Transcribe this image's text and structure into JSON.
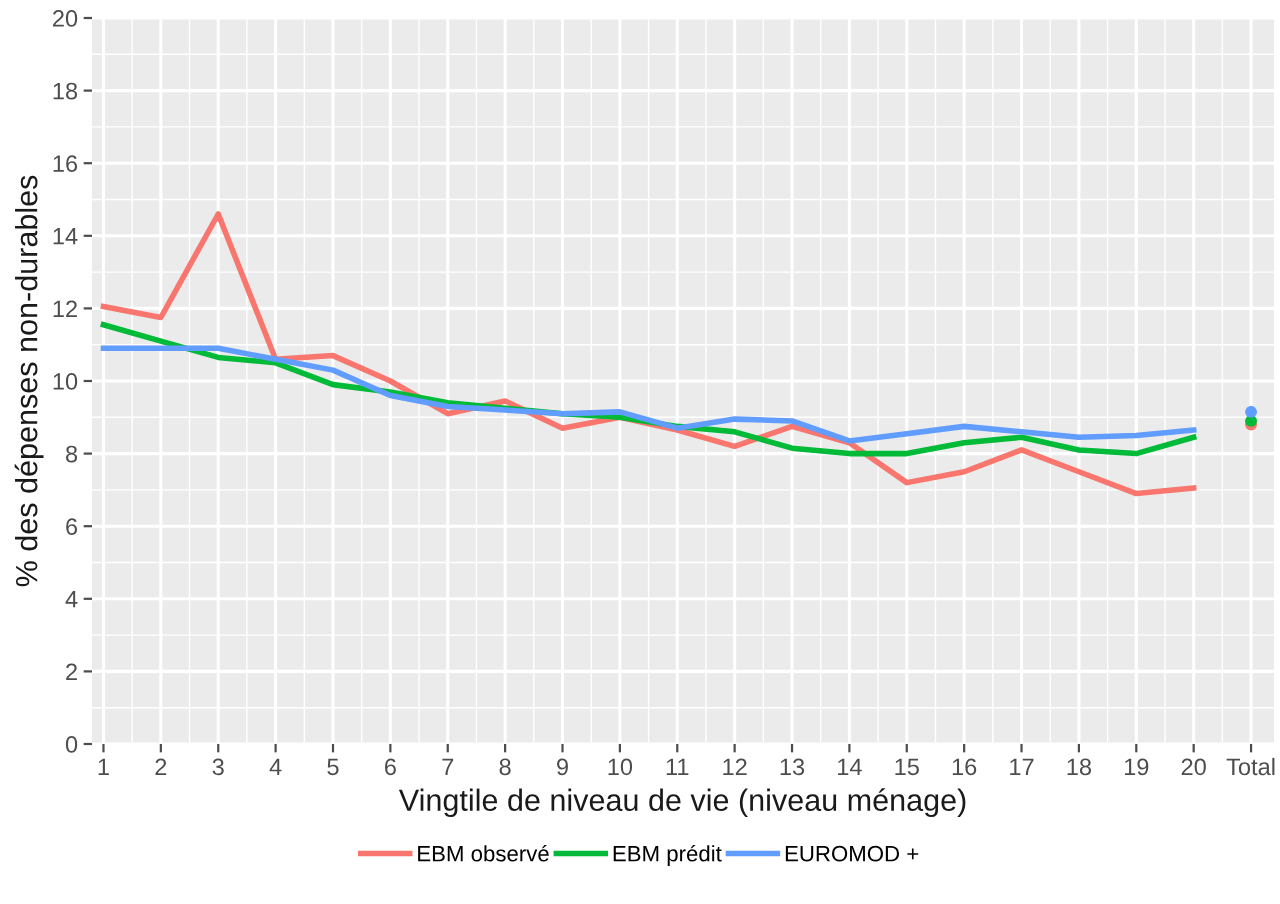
{
  "chart_data": {
    "type": "line",
    "xlabel": "Vingtile de niveau de vie (niveau ménage)",
    "ylabel": "% des dépenses non-durables",
    "categories": [
      "1",
      "2",
      "3",
      "4",
      "5",
      "6",
      "7",
      "8",
      "9",
      "10",
      "11",
      "12",
      "13",
      "14",
      "15",
      "16",
      "17",
      "18",
      "19",
      "20",
      "Total"
    ],
    "series": [
      {
        "name": "EBM observé",
        "color": "#f8766d",
        "values": [
          12.05,
          11.75,
          14.6,
          10.6,
          10.7,
          10.0,
          9.1,
          9.45,
          8.7,
          9.0,
          8.65,
          8.2,
          8.75,
          8.3,
          7.2,
          7.5,
          8.1,
          7.5,
          6.9,
          7.05,
          null
        ]
      },
      {
        "name": "EBM prédit",
        "color": "#00ba38",
        "values": [
          11.55,
          11.1,
          10.65,
          10.5,
          9.9,
          9.7,
          9.4,
          9.25,
          9.1,
          9.0,
          8.75,
          8.6,
          8.15,
          8.0,
          8.0,
          8.3,
          8.45,
          8.1,
          8.0,
          8.45,
          null
        ]
      },
      {
        "name": "EUROMOD +",
        "color": "#619cff",
        "values": [
          10.9,
          10.9,
          10.9,
          10.6,
          10.3,
          9.6,
          9.3,
          9.2,
          9.1,
          9.15,
          8.7,
          8.95,
          8.9,
          8.35,
          8.55,
          8.75,
          8.6,
          8.45,
          8.5,
          8.65,
          null
        ]
      },
      {
        "type": "scatter",
        "marker": "circle",
        "color": "#f8766d",
        "values": [
          null,
          null,
          null,
          null,
          null,
          null,
          null,
          null,
          null,
          null,
          null,
          null,
          null,
          null,
          null,
          null,
          null,
          null,
          null,
          null,
          8.8
        ]
      },
      {
        "type": "scatter",
        "marker": "circle",
        "color": "#00ba38",
        "values": [
          null,
          null,
          null,
          null,
          null,
          null,
          null,
          null,
          null,
          null,
          null,
          null,
          null,
          null,
          null,
          null,
          null,
          null,
          null,
          null,
          8.9
        ]
      },
      {
        "type": "scatter",
        "marker": "circle",
        "color": "#619cff",
        "values": [
          null,
          null,
          null,
          null,
          null,
          null,
          null,
          null,
          null,
          null,
          null,
          null,
          null,
          null,
          null,
          null,
          null,
          null,
          null,
          null,
          9.15
        ]
      }
    ],
    "ylim": [
      0,
      20
    ],
    "yticks": [
      0,
      2,
      4,
      6,
      8,
      10,
      12,
      14,
      16,
      18,
      20
    ],
    "grid": true,
    "legend": "bottom",
    "marker": "none",
    "line_style": "solid"
  }
}
